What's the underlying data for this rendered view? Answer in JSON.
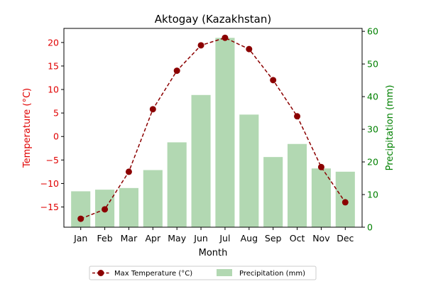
{
  "chart_data": {
    "type": "bar+line",
    "title": "Aktogay (Kazakhstan)",
    "xlabel": "Month",
    "categories": [
      "Jan",
      "Feb",
      "Mar",
      "Apr",
      "May",
      "Jun",
      "Jul",
      "Aug",
      "Sep",
      "Oct",
      "Nov",
      "Dec"
    ],
    "series": [
      {
        "name": "Max Temperature (°C)",
        "type": "line",
        "axis": "left",
        "color": "#8b0000",
        "values": [
          -17.5,
          -15.5,
          -7.5,
          5.8,
          14.0,
          19.4,
          21.0,
          18.6,
          12.0,
          4.3,
          -6.5,
          -14.0
        ]
      },
      {
        "name": "Precipitation (mm)",
        "type": "bar",
        "axis": "right",
        "color": "#b2d8b2",
        "values": [
          11,
          11.5,
          12,
          17.5,
          26,
          40.5,
          58,
          34.5,
          21.5,
          25.5,
          18,
          17
        ]
      }
    ],
    "y_left": {
      "label": "Temperature (°C)",
      "color": "#e00000",
      "lim": [
        -19.3,
        23.0
      ],
      "ticks": [
        -15,
        -10,
        -5,
        0,
        5,
        10,
        15,
        20
      ]
    },
    "y_right": {
      "label": "Precipitation (mm)",
      "color": "#008000",
      "lim": [
        0,
        60.9
      ],
      "ticks": [
        0,
        10,
        20,
        30,
        40,
        50,
        60
      ]
    },
    "legend": "bottom-center",
    "grid": false
  }
}
